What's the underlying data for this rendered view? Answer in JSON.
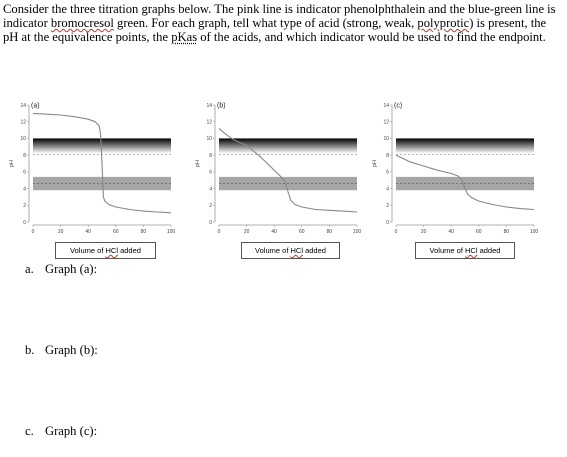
{
  "intro": {
    "p1": "Consider the three titration graphs below. The pink line is indicator phenolphthalein and the blue-green line is indicator ",
    "w_bromocresol": "bromocresol",
    "p2": " green. For each graph, tell what type of acid (strong, weak, ",
    "w_polyprotic": "polyprotic",
    "p3": ") is present, the pH at the equivalence points, the ",
    "w_pkas": "pKas",
    "p4": " of the acids, and which indicator would be used to find the endpoint."
  },
  "colors": {
    "curve": "#888888",
    "pink_band_top": "#000000",
    "pink_band_bottom": "#ffffff",
    "green_band": "#a6a6a6",
    "dash": "#9a9a9a"
  },
  "chart_data": [
    {
      "type": "line",
      "label": "(a)",
      "ylabel": "pH",
      "xlabel_prefix": "Volume of ",
      "xlabel_hcl": "HCl",
      "xlabel_suffix": " added",
      "xlim": [
        0,
        100
      ],
      "ylim": [
        0,
        14
      ],
      "xticks": [
        "0",
        "20",
        "40",
        "60",
        "80",
        "100"
      ],
      "yticks": [
        "0",
        "2",
        "4",
        "6",
        "8",
        "10",
        "12",
        "14"
      ],
      "indicator_bands": [
        {
          "name": "phenolphthalein",
          "range": [
            8.2,
            10
          ]
        },
        {
          "name": "bromocresol green",
          "range": [
            3.8,
            5.4
          ]
        }
      ],
      "x": [
        0,
        10,
        20,
        30,
        40,
        45,
        48,
        49,
        50,
        51,
        52,
        55,
        60,
        70,
        80,
        90,
        100
      ],
      "y": [
        13.0,
        12.9,
        12.8,
        12.6,
        12.3,
        12.0,
        11.5,
        10.5,
        7.0,
        3.0,
        2.5,
        2.1,
        1.8,
        1.5,
        1.3,
        1.2,
        1.1
      ]
    },
    {
      "type": "line",
      "label": "(b)",
      "ylabel": "pH",
      "xlabel_prefix": "Volume of ",
      "xlabel_hcl": "HCl",
      "xlabel_suffix": " added",
      "xlim": [
        0,
        100
      ],
      "ylim": [
        0,
        14
      ],
      "xticks": [
        "0",
        "20",
        "40",
        "60",
        "80",
        "100"
      ],
      "yticks": [
        "0",
        "2",
        "4",
        "6",
        "8",
        "10",
        "12",
        "14"
      ],
      "indicator_bands": [
        {
          "name": "phenolphthalein",
          "range": [
            8.2,
            10
          ]
        },
        {
          "name": "bromocresol green",
          "range": [
            3.8,
            5.4
          ]
        }
      ],
      "x": [
        0,
        5,
        10,
        15,
        20,
        25,
        30,
        35,
        40,
        45,
        48,
        50,
        52,
        55,
        60,
        70,
        80,
        90,
        100
      ],
      "y": [
        11.2,
        10.5,
        9.9,
        9.5,
        9.2,
        8.5,
        7.8,
        7.0,
        6.2,
        5.4,
        4.8,
        3.6,
        2.6,
        2.1,
        1.8,
        1.5,
        1.4,
        1.3,
        1.2
      ]
    },
    {
      "type": "line",
      "label": "(c)",
      "ylabel": "pH",
      "xlabel_prefix": "Volume of ",
      "xlabel_hcl": "HCl",
      "xlabel_suffix": " added",
      "xlim": [
        0,
        100
      ],
      "ylim": [
        0,
        14
      ],
      "xticks": [
        "0",
        "20",
        "40",
        "60",
        "80",
        "100"
      ],
      "yticks": [
        "0",
        "2",
        "4",
        "6",
        "8",
        "10",
        "12",
        "14"
      ],
      "indicator_bands": [
        {
          "name": "phenolphthalein",
          "range": [
            8.2,
            10
          ]
        },
        {
          "name": "bromocresol green",
          "range": [
            3.8,
            5.4
          ]
        }
      ],
      "x": [
        0,
        5,
        10,
        20,
        30,
        40,
        45,
        48,
        50,
        52,
        55,
        60,
        70,
        80,
        90,
        100
      ],
      "y": [
        8.0,
        7.6,
        7.2,
        6.7,
        6.2,
        5.8,
        5.5,
        5.0,
        4.0,
        3.3,
        2.9,
        2.5,
        2.1,
        1.8,
        1.6,
        1.5
      ]
    }
  ],
  "questions": [
    {
      "num": "a.",
      "text": "Graph (a):"
    },
    {
      "num": "b.",
      "text": "Graph (b):"
    },
    {
      "num": "c.",
      "text": "Graph (c):"
    }
  ]
}
